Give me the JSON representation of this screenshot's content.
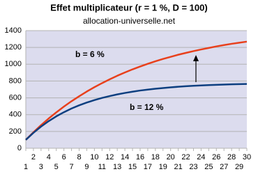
{
  "chart_data": {
    "type": "line",
    "title": "Effet multiplicateur (r = 1 %, D = 100)",
    "subtitle": "allocation-universelle.net",
    "categories": [
      "1",
      "2",
      "3",
      "4",
      "5",
      "6",
      "7",
      "8",
      "9",
      "10",
      "11",
      "12",
      "13",
      "14",
      "15",
      "16",
      "17",
      "18",
      "19",
      "20",
      "21",
      "22",
      "23",
      "24",
      "25",
      "26",
      "27",
      "28",
      "29",
      "30"
    ],
    "series": [
      {
        "name": "b = 6 %",
        "color": "#e8401c",
        "values": [
          100,
          190,
          275,
          354,
          427,
          496,
          560,
          619,
          675,
          727,
          775,
          820,
          863,
          902,
          939,
          973,
          1005,
          1035,
          1063,
          1088,
          1113,
          1135,
          1156,
          1176,
          1194,
          1212,
          1228,
          1243,
          1256,
          1269
        ]
      },
      {
        "name": "b = 12 %",
        "color": "#0d3f80",
        "values": [
          100,
          184,
          258,
          323,
          380,
          429,
          473,
          511,
          544,
          573,
          599,
          621,
          641,
          658,
          673,
          687,
          698,
          708,
          717,
          725,
          732,
          738,
          743,
          748,
          752,
          755,
          758,
          761,
          763,
          765
        ]
      }
    ],
    "ylim": [
      0,
      1400
    ],
    "yticks": [
      0,
      200,
      400,
      600,
      800,
      1000,
      1200,
      1400
    ],
    "grid": true
  }
}
